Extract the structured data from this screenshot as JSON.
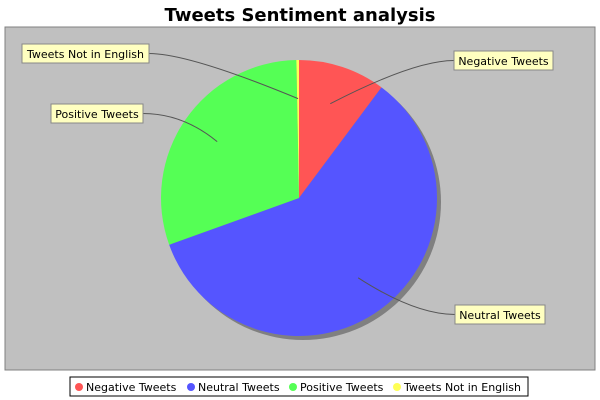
{
  "chart_data": {
    "type": "pie",
    "title": "Tweets Sentiment analysis",
    "categories": [
      "Negative Tweets",
      "Neutral Tweets",
      "Positive Tweets",
      "Tweets Not in English"
    ],
    "values": [
      10.2,
      59.3,
      30.2,
      0.3
    ],
    "colors": [
      "#ff5555",
      "#5555ff",
      "#55ff55",
      "#ffff55"
    ],
    "plot_background": "#c0c0c0",
    "label_background": "#ffffc0",
    "legend_position": "bottom"
  }
}
